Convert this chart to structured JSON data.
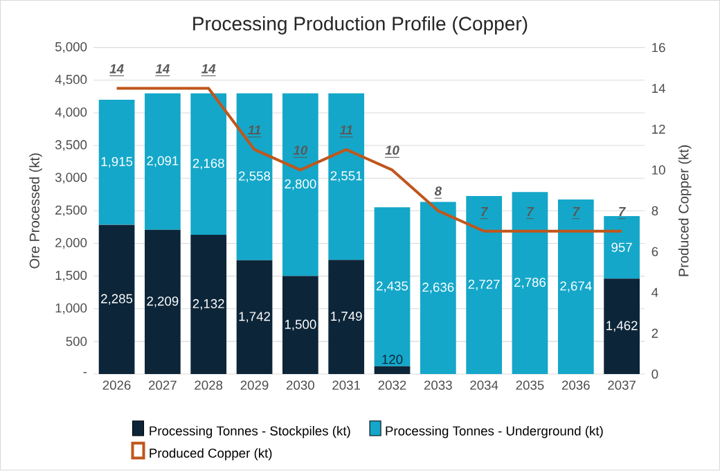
{
  "chart_data": {
    "type": "bar",
    "title": "Processing Production Profile (Copper)",
    "ylabel": "Ore Processed (kt)",
    "y2label": "Produced Copper (kt)",
    "categories": [
      "2026",
      "2027",
      "2028",
      "2029",
      "2030",
      "2031",
      "2032",
      "2033",
      "2034",
      "2035",
      "2036",
      "2037"
    ],
    "stacked": true,
    "grid": "y",
    "legend": "bottom",
    "ylim": [
      0,
      5000
    ],
    "yticks": [
      {
        "value": 0,
        "label": "-"
      },
      500,
      {
        "value": 1000,
        "label": "1,000"
      },
      {
        "value": 1500,
        "label": "1,500"
      },
      {
        "value": 2000,
        "label": "2,000"
      },
      {
        "value": 2500,
        "label": "2,500"
      },
      {
        "value": 3000,
        "label": "3,000"
      },
      {
        "value": 3500,
        "label": "3,500"
      },
      {
        "value": 4000,
        "label": "4,000"
      },
      {
        "value": 4500,
        "label": "4,500"
      },
      {
        "value": 5000,
        "label": "5,000"
      }
    ],
    "y2lim": [
      0,
      16
    ],
    "y2ticks": [
      0,
      2,
      4,
      6,
      8,
      10,
      12,
      14,
      16
    ],
    "series": [
      {
        "name": "Processing Tonnes - Stockpiles (kt)",
        "color": "#0d2538",
        "values": [
          2285,
          2209,
          2132,
          1742,
          1500,
          1749,
          120,
          0,
          0,
          0,
          0,
          1462
        ],
        "value_labels": [
          "2,285",
          "2,209",
          "2,132",
          "1,742",
          "1,500",
          "1,749",
          "120",
          null,
          null,
          null,
          null,
          "1,462"
        ]
      },
      {
        "name": "Processing Tonnes -  Underground (kt)",
        "color": "#14a7c9",
        "values": [
          1915,
          2091,
          2168,
          2558,
          2800,
          2551,
          2435,
          2636,
          2727,
          2786,
          2674,
          957
        ],
        "value_labels": [
          "1,915",
          "2,091",
          "2,168",
          "2,558",
          "2,800",
          "2,551",
          "2,435",
          "2,636",
          "2,727",
          "2,786",
          "2,674",
          "957"
        ]
      },
      {
        "name": "Produced Copper (kt)",
        "type": "line",
        "axis": "y2",
        "color": "#c0561c",
        "values": [
          14,
          14,
          14,
          11,
          10,
          11,
          10,
          8,
          7,
          7,
          7,
          7
        ],
        "value_labels": [
          "14",
          "14",
          "14",
          "11",
          "10",
          "11",
          "10",
          "8",
          "7",
          "7",
          "7",
          "7"
        ]
      }
    ]
  }
}
